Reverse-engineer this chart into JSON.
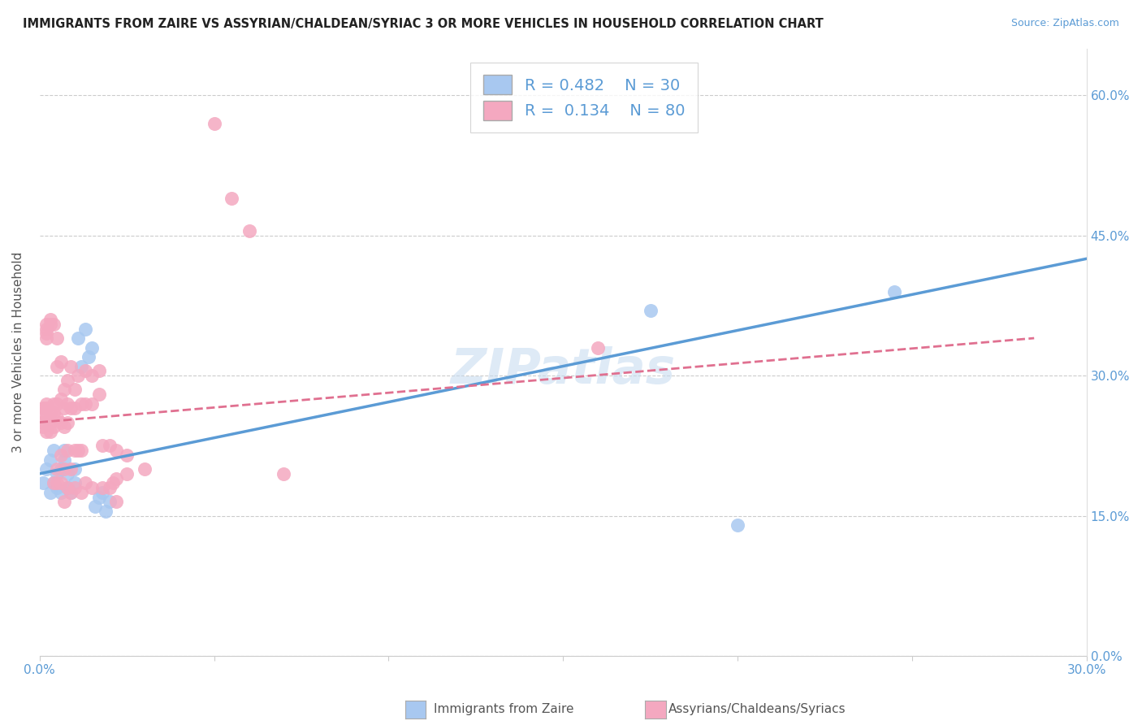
{
  "title": "IMMIGRANTS FROM ZAIRE VS ASSYRIAN/CHALDEAN/SYRIAC 3 OR MORE VEHICLES IN HOUSEHOLD CORRELATION CHART",
  "source": "Source: ZipAtlas.com",
  "ylabel": "3 or more Vehicles in Household",
  "xmin": 0.0,
  "xmax": 0.3,
  "ymin": 0.0,
  "ymax": 0.65,
  "xtick_positions": [
    0.0,
    0.05,
    0.1,
    0.15,
    0.2,
    0.25,
    0.3
  ],
  "xtick_labels": [
    "0.0%",
    "",
    "",
    "",
    "",
    "",
    "30.0%"
  ],
  "ytick_positions": [
    0.0,
    0.15,
    0.3,
    0.45,
    0.6
  ],
  "ytick_labels_right": [
    "0.0%",
    "15.0%",
    "30.0%",
    "45.0%",
    "60.0%"
  ],
  "legend_zaire_R": "0.482",
  "legend_zaire_N": "30",
  "legend_assyrian_R": "0.134",
  "legend_assyrian_N": "80",
  "blue_color": "#A8C8F0",
  "pink_color": "#F4A8C0",
  "blue_line_color": "#5B9BD5",
  "pink_line_color": "#E07090",
  "zaire_points": [
    [
      0.001,
      0.185
    ],
    [
      0.002,
      0.2
    ],
    [
      0.003,
      0.175
    ],
    [
      0.003,
      0.21
    ],
    [
      0.004,
      0.185
    ],
    [
      0.004,
      0.22
    ],
    [
      0.005,
      0.18
    ],
    [
      0.005,
      0.195
    ],
    [
      0.006,
      0.175
    ],
    [
      0.006,
      0.2
    ],
    [
      0.007,
      0.21
    ],
    [
      0.007,
      0.22
    ],
    [
      0.008,
      0.18
    ],
    [
      0.008,
      0.195
    ],
    [
      0.009,
      0.175
    ],
    [
      0.01,
      0.185
    ],
    [
      0.01,
      0.2
    ],
    [
      0.011,
      0.34
    ],
    [
      0.012,
      0.31
    ],
    [
      0.013,
      0.35
    ],
    [
      0.014,
      0.32
    ],
    [
      0.015,
      0.33
    ],
    [
      0.016,
      0.16
    ],
    [
      0.017,
      0.17
    ],
    [
      0.018,
      0.175
    ],
    [
      0.019,
      0.155
    ],
    [
      0.02,
      0.165
    ],
    [
      0.175,
      0.37
    ],
    [
      0.2,
      0.14
    ],
    [
      0.245,
      0.39
    ]
  ],
  "assyrian_points": [
    [
      0.001,
      0.26
    ],
    [
      0.001,
      0.265
    ],
    [
      0.001,
      0.25
    ],
    [
      0.001,
      0.245
    ],
    [
      0.002,
      0.27
    ],
    [
      0.002,
      0.265
    ],
    [
      0.002,
      0.255
    ],
    [
      0.002,
      0.24
    ],
    [
      0.002,
      0.35
    ],
    [
      0.002,
      0.355
    ],
    [
      0.002,
      0.345
    ],
    [
      0.002,
      0.34
    ],
    [
      0.003,
      0.36
    ],
    [
      0.003,
      0.355
    ],
    [
      0.003,
      0.26
    ],
    [
      0.003,
      0.25
    ],
    [
      0.003,
      0.24
    ],
    [
      0.004,
      0.355
    ],
    [
      0.004,
      0.27
    ],
    [
      0.004,
      0.26
    ],
    [
      0.004,
      0.245
    ],
    [
      0.004,
      0.185
    ],
    [
      0.005,
      0.34
    ],
    [
      0.005,
      0.31
    ],
    [
      0.005,
      0.27
    ],
    [
      0.005,
      0.255
    ],
    [
      0.005,
      0.2
    ],
    [
      0.005,
      0.185
    ],
    [
      0.006,
      0.315
    ],
    [
      0.006,
      0.275
    ],
    [
      0.006,
      0.25
    ],
    [
      0.006,
      0.215
    ],
    [
      0.006,
      0.185
    ],
    [
      0.007,
      0.285
    ],
    [
      0.007,
      0.265
    ],
    [
      0.007,
      0.245
    ],
    [
      0.007,
      0.2
    ],
    [
      0.007,
      0.165
    ],
    [
      0.008,
      0.295
    ],
    [
      0.008,
      0.27
    ],
    [
      0.008,
      0.25
    ],
    [
      0.008,
      0.22
    ],
    [
      0.008,
      0.18
    ],
    [
      0.009,
      0.31
    ],
    [
      0.009,
      0.265
    ],
    [
      0.009,
      0.2
    ],
    [
      0.009,
      0.175
    ],
    [
      0.01,
      0.285
    ],
    [
      0.01,
      0.265
    ],
    [
      0.01,
      0.22
    ],
    [
      0.01,
      0.18
    ],
    [
      0.011,
      0.3
    ],
    [
      0.011,
      0.22
    ],
    [
      0.012,
      0.27
    ],
    [
      0.012,
      0.22
    ],
    [
      0.012,
      0.175
    ],
    [
      0.013,
      0.305
    ],
    [
      0.013,
      0.27
    ],
    [
      0.013,
      0.185
    ],
    [
      0.015,
      0.3
    ],
    [
      0.015,
      0.27
    ],
    [
      0.015,
      0.18
    ],
    [
      0.017,
      0.305
    ],
    [
      0.017,
      0.28
    ],
    [
      0.018,
      0.225
    ],
    [
      0.018,
      0.18
    ],
    [
      0.02,
      0.225
    ],
    [
      0.02,
      0.18
    ],
    [
      0.021,
      0.185
    ],
    [
      0.022,
      0.22
    ],
    [
      0.022,
      0.19
    ],
    [
      0.022,
      0.165
    ],
    [
      0.025,
      0.215
    ],
    [
      0.025,
      0.195
    ],
    [
      0.03,
      0.2
    ],
    [
      0.05,
      0.57
    ],
    [
      0.055,
      0.49
    ],
    [
      0.06,
      0.455
    ],
    [
      0.07,
      0.195
    ],
    [
      0.16,
      0.33
    ]
  ]
}
